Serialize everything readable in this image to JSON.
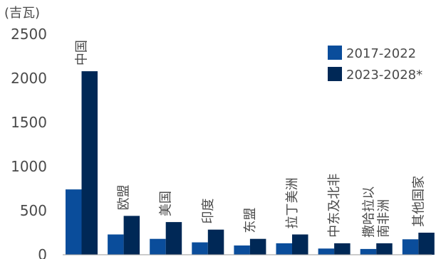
{
  "chart_data": {
    "type": "bar",
    "unit_label": "(吉瓦)",
    "categories": [
      "中国",
      "欧盟",
      "美国",
      "印度",
      "东盟",
      "拉丁美洲",
      "中东及北非",
      "撒哈拉以南非洲",
      "其他国家"
    ],
    "category_lines": [
      [
        "中国"
      ],
      [
        "欧盟"
      ],
      [
        "美国"
      ],
      [
        "印度"
      ],
      [
        "东盟"
      ],
      [
        "拉丁美洲"
      ],
      [
        "中东及北非"
      ],
      [
        "撒哈拉以",
        "南非洲"
      ],
      [
        "其他国家"
      ]
    ],
    "series": [
      {
        "name": "2017-2022",
        "color": "#0a4d9b",
        "values": [
          740,
          230,
          180,
          140,
          105,
          130,
          70,
          65,
          175
        ]
      },
      {
        "name": "2023-2028*",
        "color": "#002856",
        "values": [
          2080,
          440,
          370,
          285,
          180,
          230,
          130,
          130,
          250
        ]
      }
    ],
    "yticks": [
      0,
      500,
      1000,
      1500,
      2000,
      2500
    ],
    "ylim": [
      0,
      2500
    ],
    "legend_position": "top-right",
    "grid": false
  }
}
